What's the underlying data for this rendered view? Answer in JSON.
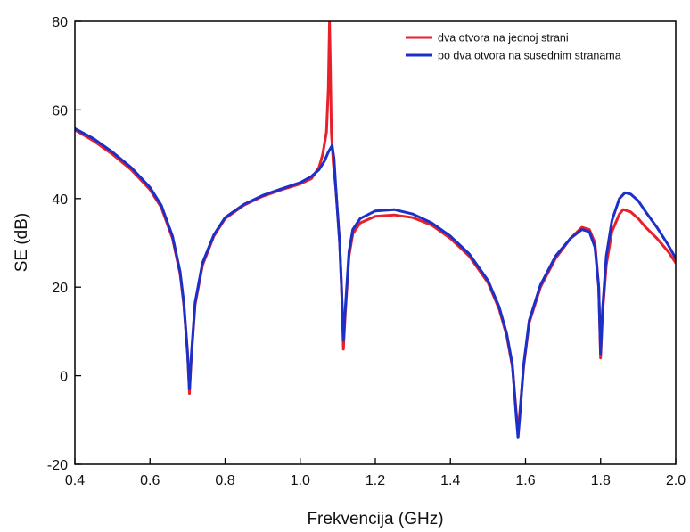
{
  "chart_data": {
    "type": "line",
    "title": "",
    "xlabel": "Frekvencija (GHz)",
    "ylabel": "SE (dB)",
    "xlim": [
      0.4,
      2.0
    ],
    "ylim": [
      -20,
      80
    ],
    "xticks": [
      "0.4",
      "0.6",
      "0.8",
      "1.0",
      "1.2",
      "1.4",
      "1.6",
      "1.8",
      "2.0"
    ],
    "yticks": [
      "-20",
      "0",
      "20",
      "40",
      "60",
      "80"
    ],
    "grid": false,
    "legend_position": "top-right",
    "series": [
      {
        "name": "dva otvora na jednoj strani",
        "color": "#e8202a",
        "points": [
          [
            0.4,
            55.5
          ],
          [
            0.45,
            53.0
          ],
          [
            0.5,
            50.0
          ],
          [
            0.55,
            46.5
          ],
          [
            0.6,
            42.0
          ],
          [
            0.63,
            38.0
          ],
          [
            0.66,
            31.0
          ],
          [
            0.68,
            23.0
          ],
          [
            0.69,
            16.0
          ],
          [
            0.7,
            5.0
          ],
          [
            0.705,
            -4.0
          ],
          [
            0.71,
            4.0
          ],
          [
            0.72,
            16.0
          ],
          [
            0.74,
            25.0
          ],
          [
            0.77,
            31.5
          ],
          [
            0.8,
            35.5
          ],
          [
            0.85,
            38.5
          ],
          [
            0.9,
            40.5
          ],
          [
            0.95,
            42.0
          ],
          [
            1.0,
            43.3
          ],
          [
            1.03,
            44.5
          ],
          [
            1.05,
            47.0
          ],
          [
            1.06,
            50.0
          ],
          [
            1.07,
            55.0
          ],
          [
            1.075,
            65.0
          ],
          [
            1.078,
            80.0
          ],
          [
            1.08,
            72.0
          ],
          [
            1.083,
            55.0
          ],
          [
            1.088,
            48.0
          ],
          [
            1.095,
            42.0
          ],
          [
            1.1,
            36.0
          ],
          [
            1.105,
            30.0
          ],
          [
            1.11,
            20.0
          ],
          [
            1.115,
            6.0
          ],
          [
            1.12,
            14.0
          ],
          [
            1.13,
            27.0
          ],
          [
            1.14,
            32.0
          ],
          [
            1.16,
            34.5
          ],
          [
            1.2,
            36.0
          ],
          [
            1.25,
            36.3
          ],
          [
            1.3,
            35.7
          ],
          [
            1.35,
            34.0
          ],
          [
            1.4,
            31.0
          ],
          [
            1.45,
            27.0
          ],
          [
            1.5,
            21.0
          ],
          [
            1.53,
            15.0
          ],
          [
            1.55,
            9.0
          ],
          [
            1.565,
            2.0
          ],
          [
            1.575,
            -8.0
          ],
          [
            1.58,
            -13.0
          ],
          [
            1.585,
            -8.0
          ],
          [
            1.595,
            2.0
          ],
          [
            1.61,
            12.0
          ],
          [
            1.64,
            20.0
          ],
          [
            1.68,
            26.5
          ],
          [
            1.72,
            31.0
          ],
          [
            1.75,
            33.5
          ],
          [
            1.77,
            33.0
          ],
          [
            1.785,
            30.0
          ],
          [
            1.795,
            20.0
          ],
          [
            1.8,
            4.0
          ],
          [
            1.805,
            14.0
          ],
          [
            1.815,
            25.0
          ],
          [
            1.83,
            32.5
          ],
          [
            1.85,
            36.5
          ],
          [
            1.86,
            37.5
          ],
          [
            1.88,
            37.0
          ],
          [
            1.9,
            35.5
          ],
          [
            1.92,
            33.5
          ],
          [
            1.95,
            31.0
          ],
          [
            1.98,
            28.0
          ],
          [
            2.0,
            25.5
          ]
        ]
      },
      {
        "name": "po dva otvora na susednim stranama",
        "color": "#1c2fc8",
        "points": [
          [
            0.4,
            55.8
          ],
          [
            0.45,
            53.5
          ],
          [
            0.5,
            50.5
          ],
          [
            0.55,
            47.0
          ],
          [
            0.6,
            42.5
          ],
          [
            0.63,
            38.5
          ],
          [
            0.66,
            31.5
          ],
          [
            0.68,
            23.5
          ],
          [
            0.69,
            16.5
          ],
          [
            0.7,
            5.0
          ],
          [
            0.705,
            -3.0
          ],
          [
            0.71,
            4.5
          ],
          [
            0.72,
            16.5
          ],
          [
            0.74,
            25.5
          ],
          [
            0.77,
            31.8
          ],
          [
            0.8,
            35.7
          ],
          [
            0.85,
            38.7
          ],
          [
            0.9,
            40.7
          ],
          [
            0.95,
            42.2
          ],
          [
            1.0,
            43.6
          ],
          [
            1.03,
            45.0
          ],
          [
            1.05,
            46.5
          ],
          [
            1.065,
            48.5
          ],
          [
            1.075,
            50.5
          ],
          [
            1.085,
            52.0
          ],
          [
            1.09,
            49.0
          ],
          [
            1.095,
            42.0
          ],
          [
            1.1,
            36.0
          ],
          [
            1.105,
            30.0
          ],
          [
            1.11,
            20.0
          ],
          [
            1.115,
            8.0
          ],
          [
            1.12,
            15.0
          ],
          [
            1.13,
            28.0
          ],
          [
            1.14,
            33.0
          ],
          [
            1.16,
            35.5
          ],
          [
            1.2,
            37.2
          ],
          [
            1.25,
            37.5
          ],
          [
            1.3,
            36.5
          ],
          [
            1.35,
            34.5
          ],
          [
            1.4,
            31.5
          ],
          [
            1.45,
            27.5
          ],
          [
            1.5,
            21.5
          ],
          [
            1.53,
            15.5
          ],
          [
            1.55,
            9.5
          ],
          [
            1.565,
            2.5
          ],
          [
            1.575,
            -9.0
          ],
          [
            1.58,
            -14.0
          ],
          [
            1.585,
            -9.0
          ],
          [
            1.595,
            2.5
          ],
          [
            1.61,
            12.5
          ],
          [
            1.64,
            20.5
          ],
          [
            1.68,
            27.0
          ],
          [
            1.72,
            31.0
          ],
          [
            1.75,
            33.0
          ],
          [
            1.77,
            32.5
          ],
          [
            1.785,
            29.0
          ],
          [
            1.795,
            20.0
          ],
          [
            1.8,
            5.0
          ],
          [
            1.805,
            15.0
          ],
          [
            1.815,
            27.0
          ],
          [
            1.83,
            35.0
          ],
          [
            1.85,
            40.0
          ],
          [
            1.865,
            41.3
          ],
          [
            1.88,
            41.0
          ],
          [
            1.9,
            39.5
          ],
          [
            1.92,
            37.0
          ],
          [
            1.95,
            33.5
          ],
          [
            1.98,
            29.5
          ],
          [
            2.0,
            26.5
          ]
        ]
      }
    ]
  }
}
